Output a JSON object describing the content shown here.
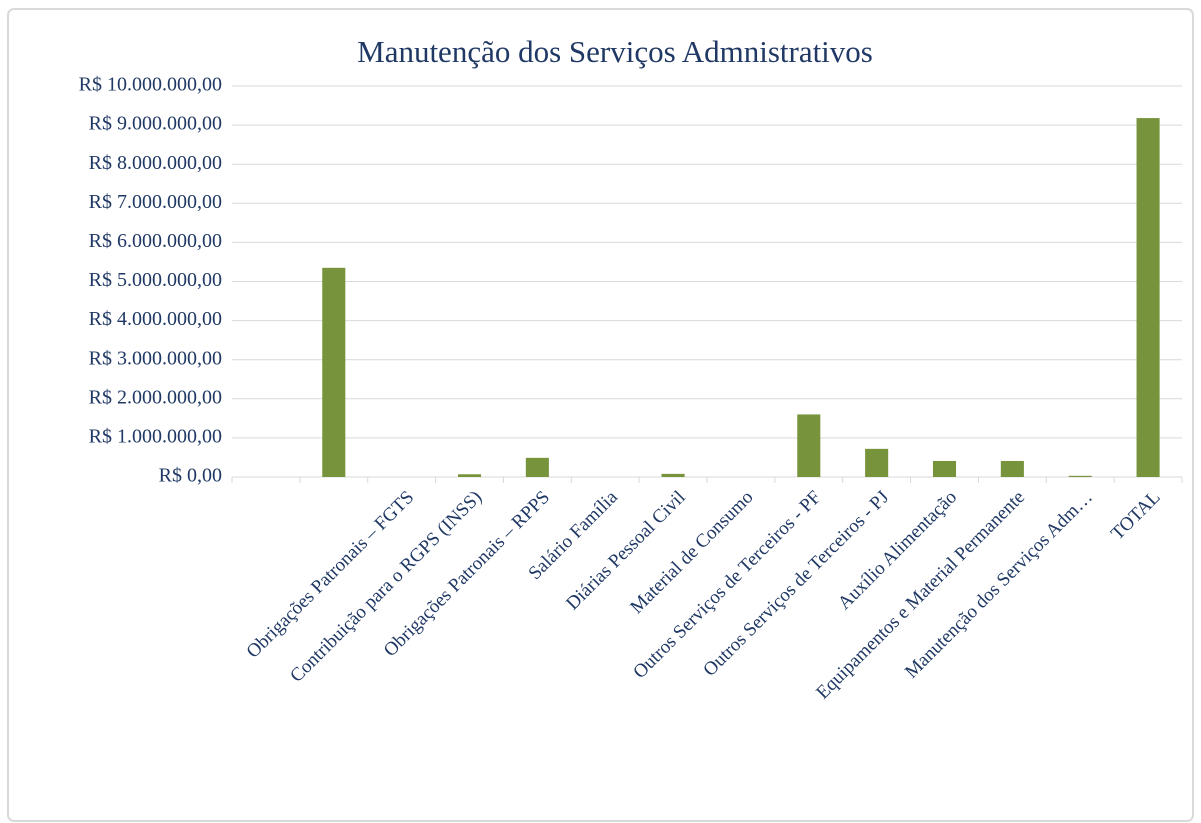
{
  "chart_data": {
    "type": "bar",
    "title": "Manutenção dos Serviços Admnistrativos",
    "categories": [
      null,
      null,
      "Obrigações Patronais – FGTS",
      "Contribuição para o RGPS (INSS)",
      "Obrigações Patronais – RPPS",
      "Salário Família",
      "Diárias Pessoal Civil",
      "Material de Consumo",
      "Outros Serviços de Terceiros - PF",
      "Outros Serviços de Terceiros - PJ",
      "Auxílio Alimentação",
      "Equipamentos e Material Permanente",
      "Manutenção dos Serviços Adm…",
      "TOTAL"
    ],
    "values": [
      null,
      5350000,
      0,
      70000,
      490000,
      0,
      80000,
      0,
      1600000,
      720000,
      410000,
      410000,
      30000,
      9180000
    ],
    "color": "#77933c",
    "ylim": [
      0,
      10000000
    ],
    "yticks": [
      {
        "value": 0,
        "label": "R$ 0,00"
      },
      {
        "value": 1000000,
        "label": "R$ 1.000.000,00"
      },
      {
        "value": 2000000,
        "label": "R$ 2.000.000,00"
      },
      {
        "value": 3000000,
        "label": "R$ 3.000.000,00"
      },
      {
        "value": 4000000,
        "label": "R$ 4.000.000,00"
      },
      {
        "value": 5000000,
        "label": "R$ 5.000.000,00"
      },
      {
        "value": 6000000,
        "label": "R$ 6.000.000,00"
      },
      {
        "value": 7000000,
        "label": "R$ 7.000.000,00"
      },
      {
        "value": 8000000,
        "label": "R$ 8.000.000,00"
      },
      {
        "value": 9000000,
        "label": "R$ 9.000.000,00"
      },
      {
        "value": 10000000,
        "label": "R$ 10.000.000,00"
      }
    ],
    "grid": true
  }
}
